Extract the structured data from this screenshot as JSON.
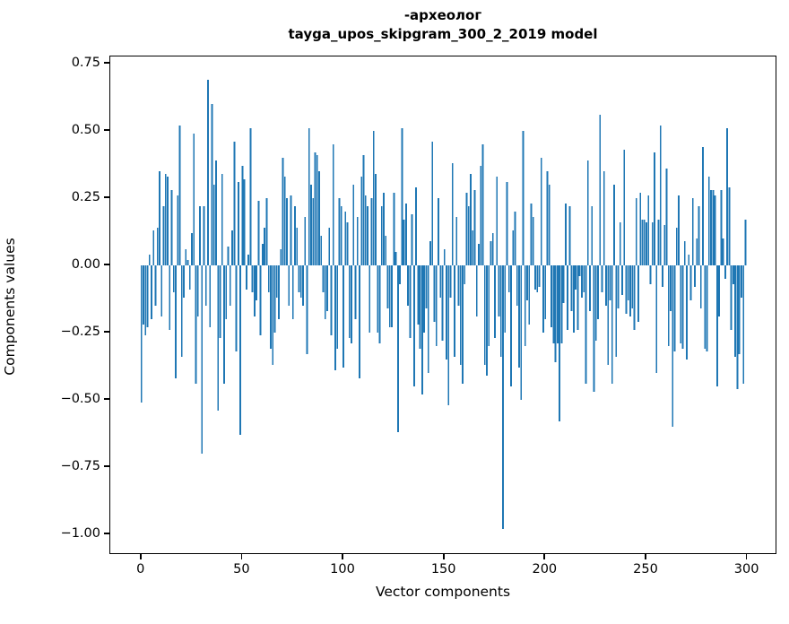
{
  "title_line1": "-археолог",
  "title_line2": "tayga_upos_skipgram_300_2_2019 model",
  "chart_data": {
    "type": "bar",
    "title": "-археолог",
    "subtitle": "tayga_upos_skipgram_300_2_2019 model",
    "xlabel": "Vector components",
    "ylabel": "Components values",
    "bar_color": "#1f77b4",
    "background_color": "#ffffff",
    "grid": false,
    "legend": null,
    "x_ticks": [
      0,
      50,
      100,
      150,
      200,
      250,
      300
    ],
    "y_ticks": [
      0.75,
      0.5,
      0.25,
      0.0,
      -0.25,
      -0.5,
      -0.75,
      -1.0
    ],
    "xlim": [
      -15.4,
      314.8
    ],
    "ylim": [
      -1.076,
      0.776
    ],
    "n_components": 300,
    "values": [
      -0.51,
      -0.22,
      -0.26,
      -0.23,
      0.04,
      -0.2,
      0.13,
      -0.15,
      0.14,
      0.35,
      -0.19,
      0.22,
      0.34,
      0.33,
      -0.24,
      0.28,
      -0.1,
      -0.42,
      0.26,
      0.52,
      -0.34,
      -0.12,
      0.06,
      0.02,
      -0.09,
      0.12,
      0.49,
      -0.44,
      -0.19,
      0.22,
      -0.7,
      0.22,
      -0.15,
      0.69,
      -0.23,
      0.6,
      0.3,
      0.39,
      -0.54,
      -0.27,
      0.34,
      -0.44,
      -0.2,
      0.07,
      -0.15,
      0.13,
      0.46,
      -0.32,
      0.31,
      -0.63,
      0.37,
      0.32,
      -0.09,
      0.04,
      0.51,
      -0.1,
      -0.19,
      -0.13,
      0.24,
      -0.26,
      0.08,
      0.14,
      0.25,
      -0.1,
      -0.31,
      -0.37,
      -0.25,
      -0.12,
      -0.2,
      0.06,
      0.4,
      0.33,
      0.25,
      -0.15,
      0.26,
      -0.2,
      0.22,
      0.14,
      -0.1,
      -0.12,
      -0.15,
      0.18,
      -0.33,
      0.51,
      0.3,
      0.25,
      0.42,
      0.41,
      0.35,
      0.11,
      -0.1,
      -0.2,
      -0.17,
      0.14,
      -0.26,
      0.45,
      -0.39,
      -0.31,
      0.25,
      0.22,
      -0.38,
      0.2,
      0.16,
      -0.27,
      -0.29,
      0.3,
      -0.2,
      0.18,
      -0.42,
      0.33,
      0.41,
      0.26,
      0.22,
      -0.25,
      0.25,
      0.5,
      0.34,
      -0.25,
      -0.29,
      0.22,
      0.27,
      0.11,
      -0.16,
      -0.23,
      -0.23,
      0.27,
      0.05,
      -0.62,
      -0.07,
      0.51,
      0.17,
      0.23,
      -0.15,
      -0.27,
      0.19,
      -0.45,
      0.29,
      -0.22,
      -0.31,
      -0.48,
      -0.25,
      -0.16,
      -0.4,
      0.09,
      0.46,
      -0.21,
      -0.3,
      0.25,
      -0.12,
      -0.28,
      0.06,
      -0.35,
      -0.52,
      -0.12,
      0.38,
      -0.34,
      0.18,
      -0.15,
      -0.37,
      -0.44,
      -0.07,
      0.27,
      0.22,
      0.34,
      0.13,
      0.28,
      -0.19,
      0.08,
      0.37,
      0.45,
      -0.37,
      -0.41,
      -0.3,
      0.09,
      0.12,
      -0.27,
      0.33,
      -0.19,
      -0.34,
      -0.98,
      -0.25,
      0.31,
      -0.1,
      -0.45,
      0.13,
      0.2,
      -0.15,
      -0.38,
      -0.5,
      0.5,
      -0.3,
      -0.13,
      -0.22,
      0.23,
      0.18,
      -0.09,
      -0.1,
      -0.08,
      0.4,
      -0.25,
      -0.2,
      0.35,
      0.3,
      -0.23,
      -0.29,
      -0.36,
      -0.29,
      -0.58,
      -0.29,
      -0.14,
      0.23,
      -0.24,
      0.22,
      -0.17,
      -0.25,
      -0.09,
      -0.24,
      -0.04,
      -0.12,
      -0.1,
      -0.44,
      0.39,
      -0.17,
      0.22,
      -0.47,
      -0.28,
      -0.2,
      0.56,
      -0.1,
      0.35,
      -0.15,
      -0.37,
      -0.13,
      -0.44,
      0.3,
      -0.34,
      -0.16,
      0.16,
      -0.11,
      0.43,
      -0.18,
      -0.13,
      -0.19,
      -0.16,
      -0.24,
      0.25,
      -0.21,
      0.27,
      0.17,
      0.17,
      0.16,
      0.26,
      -0.07,
      0.16,
      0.42,
      -0.4,
      0.17,
      0.52,
      -0.08,
      0.15,
      0.36,
      -0.3,
      -0.17,
      -0.6,
      -0.32,
      0.14,
      0.26,
      -0.29,
      -0.31,
      0.09,
      -0.35,
      0.04,
      -0.13,
      0.25,
      -0.08,
      0.1,
      0.22,
      -0.16,
      0.44,
      -0.31,
      -0.32,
      0.33,
      0.28,
      0.28,
      0.26,
      -0.45,
      -0.19,
      0.28,
      0.1,
      -0.05,
      0.51,
      0.29,
      -0.24,
      -0.07,
      -0.34,
      -0.46,
      -0.33,
      -0.12,
      -0.44,
      0.17
    ]
  }
}
